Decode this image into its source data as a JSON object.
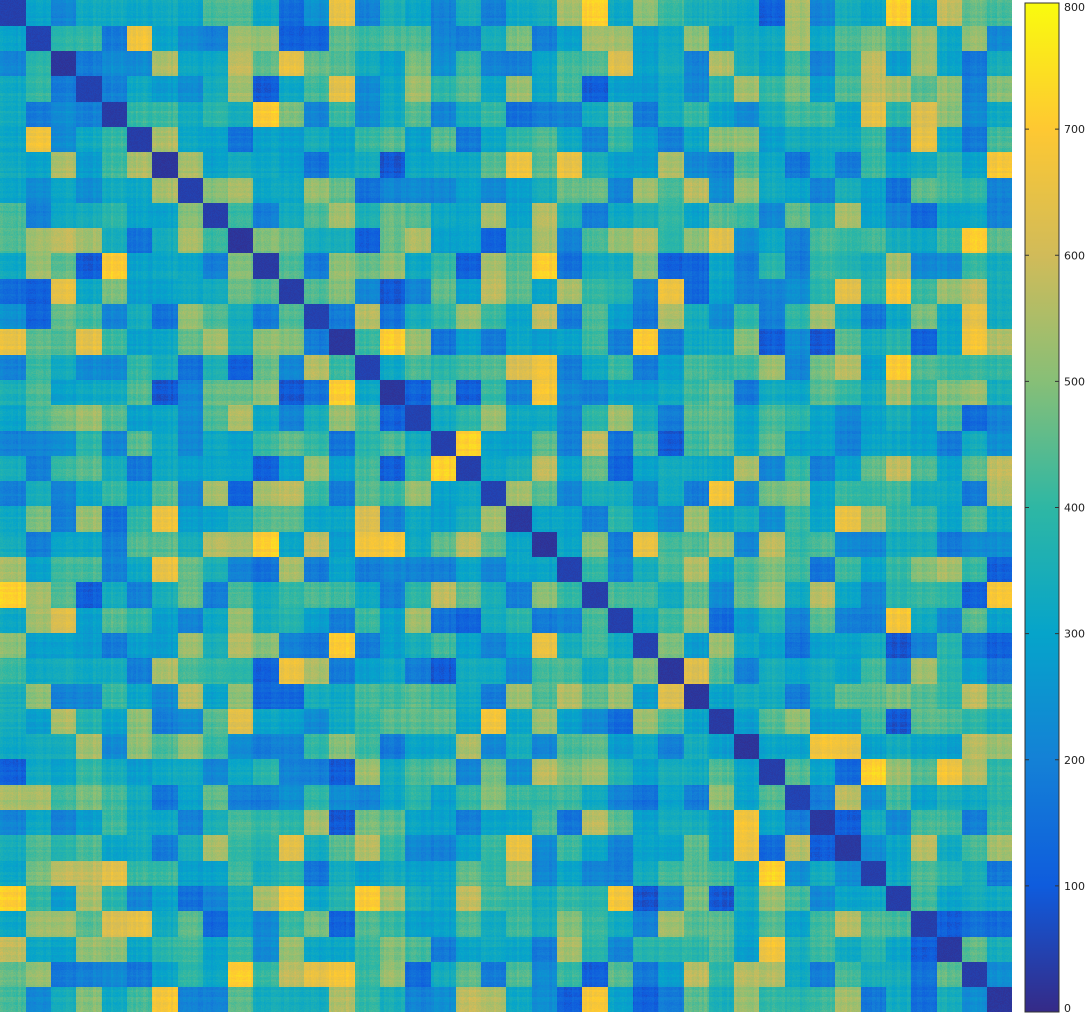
{
  "chart_data": {
    "type": "heatmap",
    "title": "",
    "xlabel": "",
    "ylabel": "",
    "block_count": 40,
    "diagonal_value": 0,
    "value_range": [
      0,
      800
    ],
    "colormap": "parula",
    "colorbar": {
      "ticks": [
        0,
        100,
        200,
        300,
        400,
        500,
        600,
        700,
        800
      ],
      "tick_labels": [
        "0",
        "100",
        "200",
        "300",
        "400",
        "500",
        "600",
        "700",
        "800"
      ],
      "placement": "right"
    },
    "colormap_stops": [
      "#352a87",
      "#0f5cdd",
      "#1481d6",
      "#06a4ca",
      "#2eb7a4",
      "#87bf77",
      "#d1bb59",
      "#fec832",
      "#f9fb0e"
    ]
  }
}
